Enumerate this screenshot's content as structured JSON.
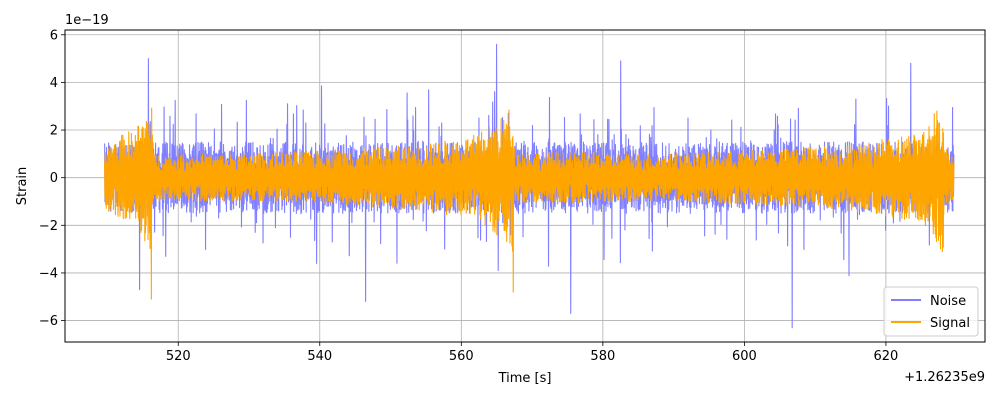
{
  "chart_data": {
    "type": "line",
    "title": "",
    "xlabel": "Time [s]",
    "ylabel": "Strain",
    "x_offset_label": "+1.26235e9",
    "y_scale_label": "1e−19",
    "xlim": [
      504,
      634
    ],
    "ylim": [
      -6.9,
      6.2
    ],
    "xticks": [
      520,
      540,
      560,
      580,
      600,
      620
    ],
    "yticks": [
      -6,
      -4,
      -2,
      0,
      2,
      4,
      6
    ],
    "grid": true,
    "legend_position": "lower-right",
    "x_range": [
      509.6,
      629.6
    ],
    "series": [
      {
        "name": "Noise",
        "color": "#7f7fff",
        "typical_amplitude": 1.5,
        "extremes": [
          {
            "x": 515.8,
            "y": 5.0
          },
          {
            "x": 565.0,
            "y": 5.6
          },
          {
            "x": 606.8,
            "y": -6.3
          },
          {
            "x": 575.5,
            "y": -5.7
          },
          {
            "x": 582.5,
            "y": 4.9
          },
          {
            "x": 623.5,
            "y": 4.8
          },
          {
            "x": 514.5,
            "y": -4.7
          },
          {
            "x": 546.5,
            "y": -5.2
          }
        ]
      },
      {
        "name": "Signal",
        "color": "#ffa500",
        "typical_amplitude": 0.9,
        "envelope": [
          {
            "x": 509.6,
            "y": 1.3
          },
          {
            "x": 512.0,
            "y": 1.8
          },
          {
            "x": 514.0,
            "y": 2.1
          },
          {
            "x": 515.5,
            "y": 2.8
          },
          {
            "x": 516.3,
            "y": 3.6
          },
          {
            "x": 516.5,
            "y": 1.0
          },
          {
            "x": 530.0,
            "y": 1.0
          },
          {
            "x": 545.0,
            "y": 1.2
          },
          {
            "x": 555.0,
            "y": 1.4
          },
          {
            "x": 562.0,
            "y": 1.8
          },
          {
            "x": 566.0,
            "y": 2.6
          },
          {
            "x": 567.3,
            "y": 3.2
          },
          {
            "x": 567.5,
            "y": 1.1
          },
          {
            "x": 590.0,
            "y": 1.0
          },
          {
            "x": 605.0,
            "y": 1.2
          },
          {
            "x": 618.0,
            "y": 1.5
          },
          {
            "x": 625.0,
            "y": 2.0
          },
          {
            "x": 628.0,
            "y": 3.2
          },
          {
            "x": 628.3,
            "y": 1.3
          },
          {
            "x": 629.6,
            "y": 1.2
          }
        ],
        "extremes": [
          {
            "x": 516.2,
            "y": -5.1
          },
          {
            "x": 567.3,
            "y": -4.8
          },
          {
            "x": 628.0,
            "y": -3.1
          }
        ]
      }
    ]
  }
}
